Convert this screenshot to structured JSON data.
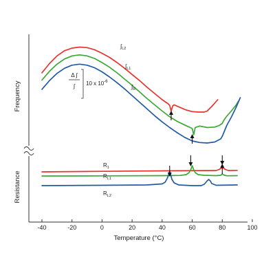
{
  "chart_data": {
    "type": "line",
    "xlabel": "Temperature (°C)",
    "xlim": [
      -40,
      100
    ],
    "x_ticks": [
      -40,
      -20,
      0,
      20,
      40,
      60,
      80,
      100
    ],
    "panels": [
      {
        "ylabel": "Frequency",
        "scale_annotation": {
          "numerator": "Δ ∫",
          "denominator": "∫",
          "value": "10 x 10",
          "exponent": "-6"
        },
        "series": [
          {
            "name": "∫",
            "sub": "L2",
            "color": "#e8322b",
            "points": [
              [
                -40,
                70
              ],
              [
                -35,
                79
              ],
              [
                -30,
                86.5
              ],
              [
                -25,
                91.5
              ],
              [
                -20,
                94
              ],
              [
                -15,
                95
              ],
              [
                -10,
                94.5
              ],
              [
                -5,
                92.5
              ],
              [
                0,
                89
              ],
              [
                5,
                85
              ],
              [
                10,
                80
              ],
              [
                15,
                74.5
              ],
              [
                20,
                68.5
              ],
              [
                25,
                62.5
              ],
              [
                30,
                56
              ],
              [
                35,
                50
              ],
              [
                40,
                44
              ],
              [
                44,
                40
              ],
              [
                45,
                38.5
              ],
              [
                46,
                33
              ],
              [
                47,
                38
              ],
              [
                48,
                39
              ],
              [
                52,
                36.5
              ],
              [
                56,
                34
              ],
              [
                60,
                32.5
              ],
              [
                64,
                32
              ],
              [
                68,
                32
              ],
              [
                70,
                33
              ],
              [
                72,
                36
              ],
              [
                74,
                39
              ],
              [
                77,
                44
              ]
            ]
          },
          {
            "name": "∫",
            "sub": "L1",
            "color": "#3aa832",
            "points": [
              [
                -40,
                63
              ],
              [
                -35,
                71.5
              ],
              [
                -30,
                78.5
              ],
              [
                -25,
                83.5
              ],
              [
                -20,
                86.5
              ],
              [
                -15,
                87.5
              ],
              [
                -10,
                86.5
              ],
              [
                -5,
                84
              ],
              [
                0,
                80
              ],
              [
                5,
                75.5
              ],
              [
                10,
                70
              ],
              [
                15,
                64
              ],
              [
                20,
                58
              ],
              [
                25,
                51.5
              ],
              [
                30,
                45
              ],
              [
                35,
                39
              ],
              [
                40,
                33
              ],
              [
                45,
                27.5
              ],
              [
                50,
                23
              ],
              [
                55,
                19.5
              ],
              [
                58,
                17.5
              ],
              [
                60,
                16
              ],
              [
                61,
                10
              ],
              [
                62,
                17
              ],
              [
                65,
                18.5
              ],
              [
                70,
                17
              ],
              [
                75,
                17.5
              ],
              [
                78,
                19
              ],
              [
                80,
                21
              ],
              [
                81,
                24
              ],
              [
                83,
                28
              ],
              [
                86,
                33
              ],
              [
                89,
                38.5
              ],
              [
                91,
                43
              ]
            ]
          },
          {
            "name": "∫",
            "sub": "R",
            "color": "#1f5aa5",
            "points": [
              [
                -40,
                54
              ],
              [
                -35,
                62.5
              ],
              [
                -30,
                69.5
              ],
              [
                -25,
                74.5
              ],
              [
                -20,
                77.5
              ],
              [
                -15,
                78.5
              ],
              [
                -10,
                77.5
              ],
              [
                -5,
                75
              ],
              [
                0,
                71
              ],
              [
                5,
                66
              ],
              [
                10,
                60.5
              ],
              [
                15,
                54.5
              ],
              [
                20,
                48
              ],
              [
                25,
                41.5
              ],
              [
                30,
                35
              ],
              [
                35,
                28.5
              ],
              [
                40,
                22.5
              ],
              [
                45,
                17
              ],
              [
                50,
                12
              ],
              [
                55,
                7.5
              ],
              [
                60,
                4
              ],
              [
                65,
                2.5
              ],
              [
                70,
                2
              ],
              [
                75,
                3
              ],
              [
                79,
                6
              ],
              [
                80,
                8.5
              ],
              [
                81,
                12
              ],
              [
                83,
                19
              ],
              [
                86,
                27
              ],
              [
                89,
                36
              ],
              [
                92,
                46
              ]
            ]
          }
        ],
        "arrows": [
          {
            "x": 46,
            "direction": "up"
          },
          {
            "x": 60,
            "direction": "up"
          },
          {
            "x": 80,
            "direction": "up"
          }
        ]
      },
      {
        "ylabel": "Resistance",
        "series": [
          {
            "name": "R",
            "sub": "1",
            "color": "#e8322b",
            "points": [
              [
                -40,
                13
              ],
              [
                0,
                13.8
              ],
              [
                40,
                14.5
              ],
              [
                76,
                15
              ],
              [
                78,
                16.5
              ],
              [
                79,
                18
              ],
              [
                80,
                19
              ],
              [
                81,
                18
              ],
              [
                82,
                16.5
              ],
              [
                84,
                15
              ],
              [
                90,
                15.2
              ]
            ]
          },
          {
            "name": "R",
            "sub": "L1",
            "color": "#3aa832",
            "points": [
              [
                -40,
                7
              ],
              [
                0,
                7.2
              ],
              [
                40,
                7.5
              ],
              [
                52,
                7.8
              ],
              [
                56,
                9
              ],
              [
                58,
                12
              ],
              [
                59,
                16
              ],
              [
                60,
                22
              ],
              [
                61,
                16
              ],
              [
                62,
                12
              ],
              [
                64,
                9
              ],
              [
                68,
                8
              ],
              [
                76,
                7.5
              ],
              [
                79,
                8
              ],
              [
                80,
                10
              ],
              [
                81,
                8.5
              ],
              [
                83,
                7.3
              ],
              [
                90,
                7.5
              ]
            ]
          },
          {
            "name": "R",
            "sub": "L2",
            "color": "#1f5aa5",
            "points": [
              [
                -40,
                -7
              ],
              [
                0,
                -6.5
              ],
              [
                30,
                -6
              ],
              [
                40,
                -4.5
              ],
              [
                42,
                -2
              ],
              [
                43.5,
                4
              ],
              [
                44.5,
                10
              ],
              [
                45,
                14
              ],
              [
                45.5,
                10
              ],
              [
                46.5,
                2
              ],
              [
                48,
                -3
              ],
              [
                51,
                -6
              ],
              [
                60,
                -7
              ],
              [
                66,
                -7
              ],
              [
                68,
                -5
              ],
              [
                70,
                0
              ],
              [
                71,
                2
              ],
              [
                72,
                0
              ],
              [
                73,
                -4
              ],
              [
                76,
                -6.5
              ],
              [
                90,
                -6
              ]
            ]
          }
        ],
        "arrows": [
          {
            "x": 45,
            "direction": "down"
          },
          {
            "x": 59,
            "direction": "down"
          },
          {
            "x": 80,
            "direction": "down"
          }
        ]
      }
    ]
  }
}
